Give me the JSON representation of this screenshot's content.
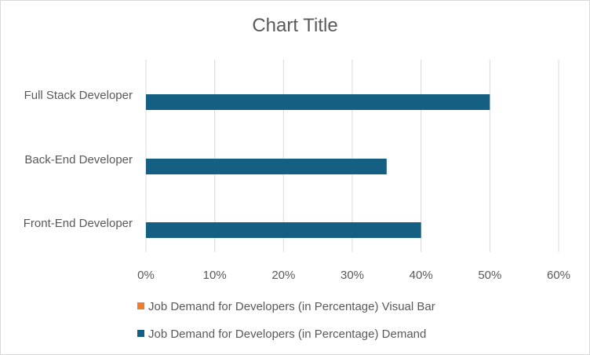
{
  "chart_data": {
    "type": "bar",
    "orientation": "horizontal",
    "title": "Chart Title",
    "categories": [
      "Full Stack Developer",
      "Back-End Developer",
      "Front-End Developer"
    ],
    "series": [
      {
        "name": "Job Demand for Developers (in Percentage) Visual Bar",
        "values": [
          0,
          0,
          0
        ],
        "color": "#ED7D31"
      },
      {
        "name": "Job Demand for Developers (in Percentage) Demand",
        "values": [
          50,
          35,
          40
        ],
        "color": "#156082"
      }
    ],
    "x_ticks": [
      "0%",
      "10%",
      "20%",
      "30%",
      "40%",
      "50%",
      "60%"
    ],
    "xlim": [
      0,
      60
    ],
    "grid": "vertical",
    "legend_position": "bottom"
  }
}
